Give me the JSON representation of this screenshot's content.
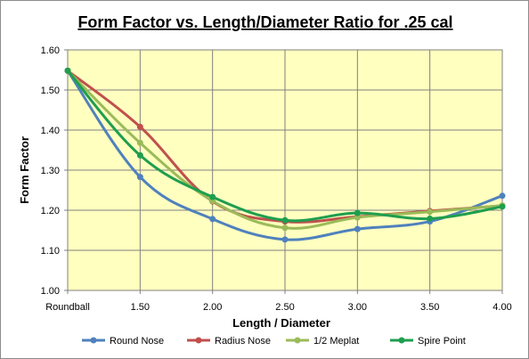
{
  "chart_data": {
    "type": "line",
    "title": "Form Factor vs. Length/Diameter Ratio for .25 cal",
    "xlabel": "Length / Diameter",
    "ylabel": "Form Factor",
    "categories": [
      "Roundball",
      "1.50",
      "2.00",
      "2.50",
      "3.00",
      "3.50",
      "4.00"
    ],
    "ylim": [
      1.0,
      1.6
    ],
    "yticks": [
      "1.00",
      "1.10",
      "1.20",
      "1.30",
      "1.40",
      "1.50",
      "1.60"
    ],
    "grid": true,
    "legend_position": "bottom",
    "plot_background": "#ffffc0",
    "series": [
      {
        "name": "Round Nose",
        "color": "#4f81bd",
        "values": [
          1.548,
          1.283,
          1.178,
          1.127,
          1.153,
          1.172,
          1.236
        ]
      },
      {
        "name": "Radius Nose",
        "color": "#c0504d",
        "values": [
          1.548,
          1.408,
          1.222,
          1.172,
          1.184,
          1.198,
          1.211
        ]
      },
      {
        "name": "1/2 Meplat",
        "color": "#9bbb59",
        "values": [
          1.548,
          1.368,
          1.223,
          1.156,
          1.182,
          1.196,
          1.212
        ]
      },
      {
        "name": "Spire Point",
        "color": "#1f9e4f",
        "values": [
          1.548,
          1.337,
          1.233,
          1.175,
          1.193,
          1.179,
          1.209
        ]
      }
    ]
  }
}
